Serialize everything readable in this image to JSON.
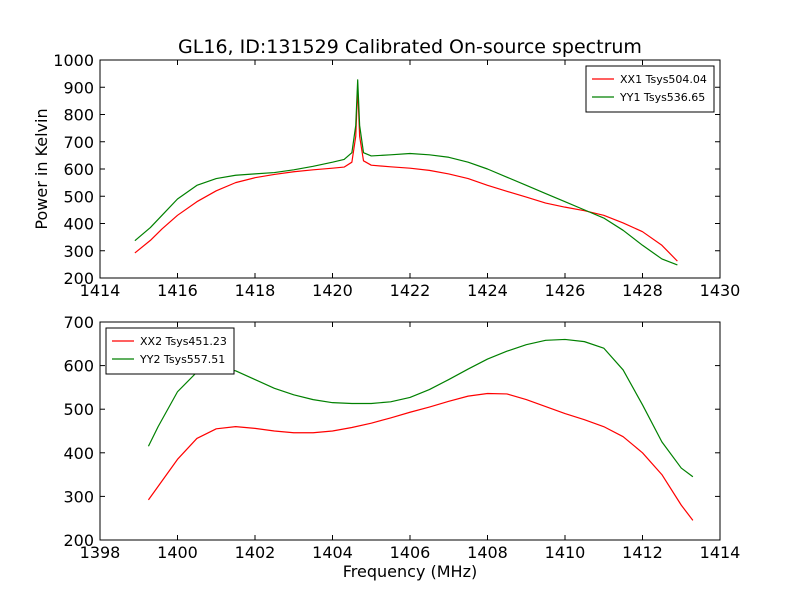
{
  "figure": {
    "title": "GL16, ID:131529 Calibrated On-source spectrum"
  },
  "chart_data": [
    {
      "type": "line",
      "title": "",
      "xlabel": "",
      "ylabel": "Power in Kelvin",
      "xlim": [
        1414,
        1430
      ],
      "ylim": [
        200,
        1000
      ],
      "xticks": [
        1414,
        1416,
        1418,
        1420,
        1422,
        1424,
        1426,
        1428,
        1430
      ],
      "yticks": [
        200,
        300,
        400,
        500,
        600,
        700,
        800,
        900,
        1000
      ],
      "grid": false,
      "legend_position": "top-right",
      "series": [
        {
          "name": "XX1 Tsys504.04",
          "color": "#ff0000",
          "x": [
            1414.9,
            1415.3,
            1415.6,
            1416.0,
            1416.5,
            1417.0,
            1417.5,
            1418.0,
            1418.5,
            1419.0,
            1419.5,
            1420.0,
            1420.3,
            1420.5,
            1420.6,
            1420.65,
            1420.7,
            1420.8,
            1421.0,
            1421.5,
            1422.0,
            1422.5,
            1423.0,
            1423.5,
            1424.0,
            1424.5,
            1425.0,
            1425.5,
            1426.0,
            1426.5,
            1427.0,
            1427.5,
            1428.0,
            1428.5,
            1428.9
          ],
          "y": [
            292,
            338,
            380,
            430,
            480,
            520,
            550,
            568,
            580,
            590,
            597,
            603,
            607,
            625,
            720,
            900,
            720,
            630,
            614,
            608,
            603,
            595,
            582,
            565,
            540,
            518,
            497,
            475,
            460,
            447,
            430,
            402,
            370,
            320,
            262
          ]
        },
        {
          "name": "YY1 Tsys536.65",
          "color": "#008000",
          "x": [
            1414.9,
            1415.3,
            1415.6,
            1416.0,
            1416.5,
            1417.0,
            1417.5,
            1418.0,
            1418.5,
            1419.0,
            1419.5,
            1420.0,
            1420.3,
            1420.5,
            1420.6,
            1420.65,
            1420.7,
            1420.8,
            1421.0,
            1421.5,
            1422.0,
            1422.5,
            1423.0,
            1423.5,
            1424.0,
            1424.5,
            1425.0,
            1425.5,
            1426.0,
            1426.5,
            1427.0,
            1427.5,
            1428.0,
            1428.5,
            1428.9
          ],
          "y": [
            337,
            385,
            430,
            490,
            540,
            565,
            577,
            582,
            587,
            597,
            610,
            625,
            635,
            660,
            760,
            927,
            760,
            660,
            648,
            652,
            657,
            652,
            643,
            625,
            600,
            570,
            540,
            510,
            480,
            450,
            420,
            375,
            320,
            270,
            248
          ]
        }
      ]
    },
    {
      "type": "line",
      "title": "",
      "xlabel": "Frequency (MHz)",
      "ylabel": "",
      "xlim": [
        1398,
        1414
      ],
      "ylim": [
        200,
        700
      ],
      "xticks": [
        1398,
        1400,
        1402,
        1404,
        1406,
        1408,
        1410,
        1412,
        1414
      ],
      "yticks": [
        200,
        300,
        400,
        500,
        600,
        700
      ],
      "grid": false,
      "legend_position": "top-left",
      "series": [
        {
          "name": "XX2 Tsys451.23",
          "color": "#ff0000",
          "x": [
            1399.25,
            1399.5,
            1400.0,
            1400.5,
            1401.0,
            1401.5,
            1402.0,
            1402.5,
            1403.0,
            1403.5,
            1404.0,
            1404.5,
            1405.0,
            1405.5,
            1406.0,
            1406.5,
            1407.0,
            1407.5,
            1408.0,
            1408.5,
            1409.0,
            1409.5,
            1410.0,
            1410.5,
            1411.0,
            1411.5,
            1412.0,
            1412.5,
            1413.0,
            1413.3
          ],
          "y": [
            292,
            323,
            385,
            433,
            455,
            460,
            456,
            450,
            446,
            446,
            450,
            458,
            468,
            480,
            493,
            505,
            518,
            530,
            536,
            535,
            522,
            506,
            490,
            476,
            460,
            437,
            400,
            350,
            280,
            245
          ]
        },
        {
          "name": "YY2 Tsys557.51",
          "color": "#008000",
          "x": [
            1399.25,
            1399.5,
            1400.0,
            1400.5,
            1401.0,
            1401.5,
            1402.0,
            1402.5,
            1403.0,
            1403.5,
            1404.0,
            1404.5,
            1405.0,
            1405.5,
            1406.0,
            1406.5,
            1407.0,
            1407.5,
            1408.0,
            1408.5,
            1409.0,
            1409.5,
            1410.0,
            1410.5,
            1411.0,
            1411.5,
            1412.0,
            1412.5,
            1413.0,
            1413.3
          ],
          "y": [
            415,
            460,
            540,
            585,
            595,
            588,
            568,
            548,
            533,
            522,
            515,
            513,
            513,
            517,
            527,
            545,
            568,
            592,
            615,
            633,
            648,
            658,
            660,
            655,
            640,
            590,
            510,
            425,
            365,
            345
          ]
        }
      ]
    }
  ]
}
